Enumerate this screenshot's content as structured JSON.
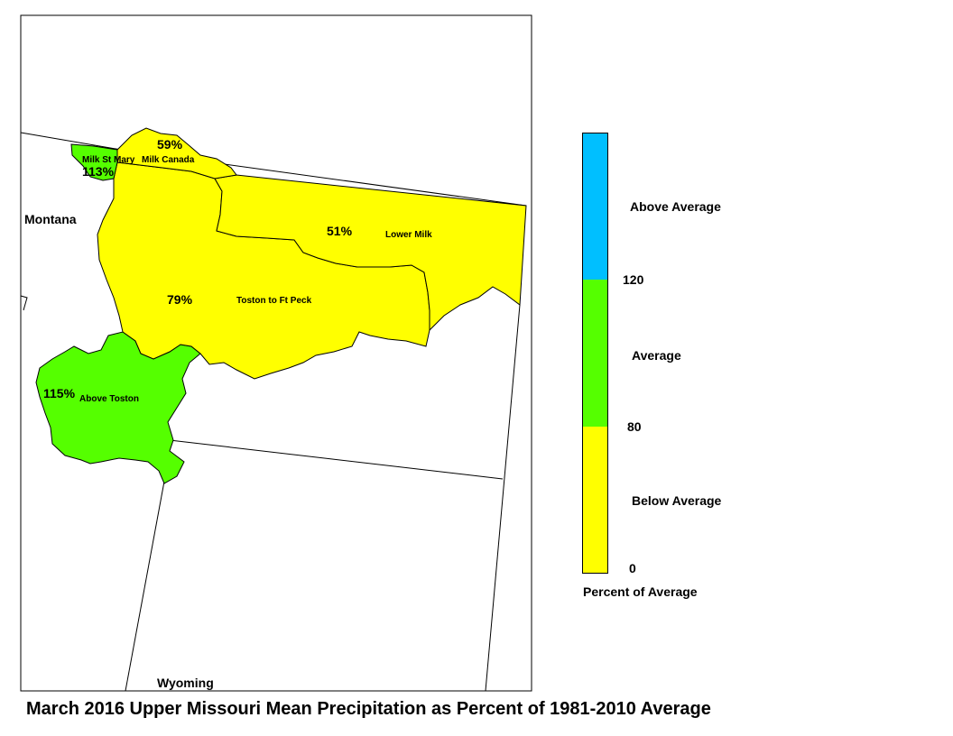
{
  "title": "March 2016 Upper Missouri Mean Precipitation as Percent of 1981-2010 Average",
  "colors": {
    "above": "#00bfff",
    "average": "#55ff00",
    "below": "#ffff00"
  },
  "states": {
    "montana": "Montana",
    "wyoming": "Wyoming"
  },
  "basins": [
    {
      "name": "Milk St Mary",
      "percent": "113%",
      "category": "average"
    },
    {
      "name": "Milk Canada",
      "percent": "59%",
      "category": "below"
    },
    {
      "name": "Lower Milk",
      "percent": "51%",
      "category": "below"
    },
    {
      "name": "Toston to Ft Peck",
      "percent": "79%",
      "category": "below"
    },
    {
      "name": "Above Toston",
      "percent": "115%",
      "category": "average"
    }
  ],
  "legend": {
    "title": "Percent of Average",
    "categories": [
      {
        "label": "Above Average",
        "color": "#00bfff"
      },
      {
        "label": "Average",
        "color": "#55ff00"
      },
      {
        "label": "Below Average",
        "color": "#ffff00"
      }
    ],
    "breaks": [
      "120",
      "80",
      "0"
    ]
  }
}
